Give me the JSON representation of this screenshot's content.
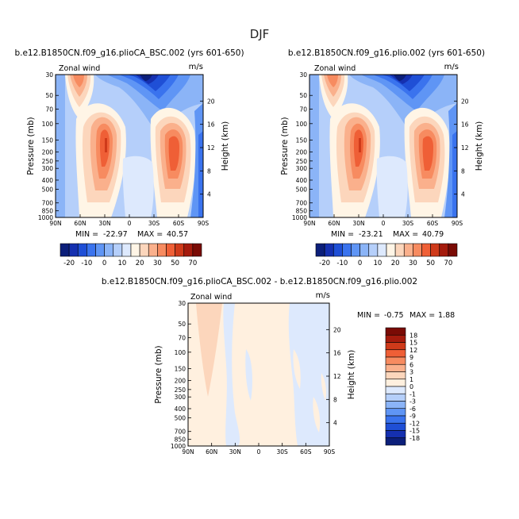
{
  "page": {
    "title": "DJF"
  },
  "palettes": {
    "full": [
      "#0c1f7a",
      "#1530b0",
      "#1f4fd6",
      "#3a73ee",
      "#5f95f5",
      "#8bb4f7",
      "#b5cffa",
      "#dde9fd",
      "#fff5e6",
      "#fcd6bc",
      "#fab08c",
      "#f78b60",
      "#ef5f36",
      "#cf3a1a",
      "#a51b0d",
      "#7a0b05"
    ],
    "diff": [
      "#0c1f7a",
      "#1530b0",
      "#1f4fd6",
      "#3a73ee",
      "#5f95f5",
      "#8bb4f7",
      "#b5cffa",
      "#dde9fd",
      "#fff0df",
      "#fcd6bc",
      "#fab08c",
      "#f78b60",
      "#ef5f36",
      "#cf3a1a",
      "#a51b0d",
      "#7a0b05"
    ]
  },
  "chart_data": [
    {
      "type": "heatmap",
      "title": "b.e12.B1850CN.f09_g16.plioCA_BSC.002 (yrs 601-650)",
      "variable_label": "Zonal wind",
      "units": "m/s",
      "ylabel": "Pressure (mb)",
      "right_label": "Height (km)",
      "x_ticks": [
        "90N",
        "60N",
        "30N",
        "0",
        "30S",
        "60S",
        "90S"
      ],
      "y_ticks": [
        "30",
        "50",
        "70",
        "100",
        "150",
        "200",
        "250",
        "300",
        "400",
        "500",
        "700",
        "850",
        "1000"
      ],
      "right_ticks": [
        "20",
        "16",
        "12",
        "8",
        "4"
      ],
      "stats": {
        "min_label": "MIN =",
        "min": "-22.97",
        "max_label": "MAX =",
        "max": "40.57"
      },
      "colorbar_labels": [
        "-20",
        "-10",
        "0",
        "10",
        "20",
        "30",
        "50",
        "70"
      ],
      "ylim": [
        1000,
        30
      ],
      "xlim": [
        90,
        -90
      ]
    },
    {
      "type": "heatmap",
      "title": "b.e12.B1850CN.f09_g16.plio.002 (yrs 601-650)",
      "variable_label": "Zonal wind",
      "units": "m/s",
      "ylabel": "Pressure (mb)",
      "right_label": "Height (km)",
      "x_ticks": [
        "90N",
        "60N",
        "30N",
        "0",
        "30S",
        "60S",
        "90S"
      ],
      "y_ticks": [
        "30",
        "50",
        "70",
        "100",
        "150",
        "200",
        "250",
        "300",
        "400",
        "500",
        "700",
        "850",
        "1000"
      ],
      "right_ticks": [
        "20",
        "16",
        "12",
        "8",
        "4"
      ],
      "stats": {
        "min_label": "MIN =",
        "min": "-23.21",
        "max_label": "MAX =",
        "max": "40.79"
      },
      "colorbar_labels": [
        "-20",
        "-10",
        "0",
        "10",
        "20",
        "30",
        "50",
        "70"
      ],
      "ylim": [
        1000,
        30
      ],
      "xlim": [
        90,
        -90
      ]
    },
    {
      "type": "heatmap",
      "title": "b.e12.B1850CN.f09_g16.plioCA_BSC.002 - b.e12.B1850CN.f09_g16.plio.002",
      "variable_label": "Zonal wind",
      "units": "m/s",
      "ylabel": "Pressure (mb)",
      "right_label": "Height (km)",
      "x_ticks": [
        "90N",
        "60N",
        "30N",
        "0",
        "30S",
        "60S",
        "90S"
      ],
      "y_ticks": [
        "30",
        "50",
        "70",
        "100",
        "150",
        "200",
        "250",
        "300",
        "400",
        "500",
        "700",
        "850",
        "1000"
      ],
      "right_ticks": [
        "20",
        "16",
        "12",
        "8",
        "4"
      ],
      "stats": {
        "min_label": "MIN =",
        "min": "-0.75",
        "max_label": "MAX =",
        "max": "1.88"
      },
      "colorbar_labels": [
        "18",
        "15",
        "12",
        "9",
        "6",
        "3",
        "1",
        "0",
        "-1",
        "-3",
        "-6",
        "-9",
        "-12",
        "-15",
        "-18"
      ],
      "ylim": [
        1000,
        30
      ],
      "xlim": [
        90,
        -90
      ]
    }
  ]
}
